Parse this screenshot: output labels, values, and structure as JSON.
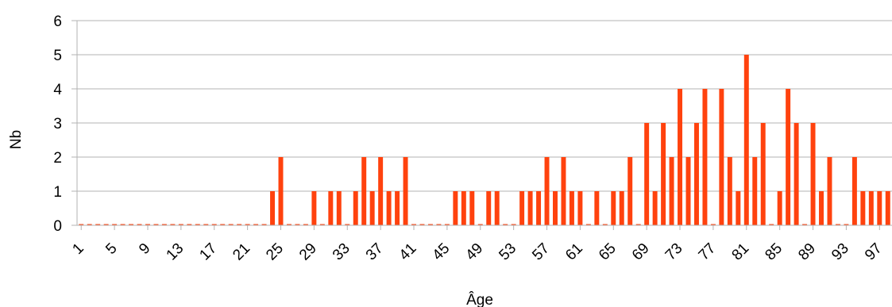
{
  "chart_data": {
    "type": "bar",
    "xlabel": "Âge",
    "ylabel": "Nb",
    "ylim": [
      0,
      6
    ],
    "yticks": [
      0,
      1,
      2,
      3,
      4,
      5,
      6
    ],
    "xtick_labels": [
      "1",
      "5",
      "9",
      "13",
      "17",
      "21",
      "25",
      "29",
      "33",
      "37",
      "41",
      "45",
      "49",
      "53",
      "57",
      "61",
      "65",
      "69",
      "73",
      "77",
      "81",
      "85",
      "89",
      "93",
      "97"
    ],
    "grid": true,
    "bar_color": "#ff420e",
    "x": [
      1,
      2,
      3,
      4,
      5,
      6,
      7,
      8,
      9,
      10,
      11,
      12,
      13,
      14,
      15,
      16,
      17,
      18,
      19,
      20,
      21,
      22,
      23,
      24,
      25,
      26,
      27,
      28,
      29,
      30,
      31,
      32,
      33,
      34,
      35,
      36,
      37,
      38,
      39,
      40,
      41,
      42,
      43,
      44,
      45,
      46,
      47,
      48,
      49,
      50,
      51,
      52,
      53,
      54,
      55,
      56,
      57,
      58,
      59,
      60,
      61,
      62,
      63,
      64,
      65,
      66,
      67,
      68,
      69,
      70,
      71,
      72,
      73,
      74,
      75,
      76,
      77,
      78,
      79,
      80,
      81,
      82,
      83,
      84,
      85,
      86,
      87,
      88,
      89,
      90,
      91,
      92,
      93,
      94,
      95,
      96,
      97,
      98
    ],
    "values": [
      0,
      0,
      0,
      0,
      0,
      0,
      0,
      0,
      0,
      0,
      0,
      0,
      0,
      0,
      0,
      0,
      0,
      0,
      0,
      0,
      0,
      0,
      0,
      1,
      2,
      0,
      0,
      0,
      1,
      0,
      1,
      1,
      0,
      1,
      2,
      1,
      2,
      1,
      1,
      2,
      0,
      0,
      0,
      0,
      0,
      1,
      1,
      1,
      0,
      1,
      1,
      0,
      0,
      1,
      1,
      1,
      2,
      1,
      2,
      1,
      1,
      0,
      1,
      0,
      1,
      1,
      2,
      0,
      3,
      1,
      3,
      2,
      4,
      2,
      3,
      4,
      0,
      4,
      2,
      1,
      5,
      2,
      3,
      0,
      1,
      4,
      3,
      0,
      3,
      1,
      2,
      0,
      0,
      2,
      1,
      1,
      1,
      1
    ]
  }
}
